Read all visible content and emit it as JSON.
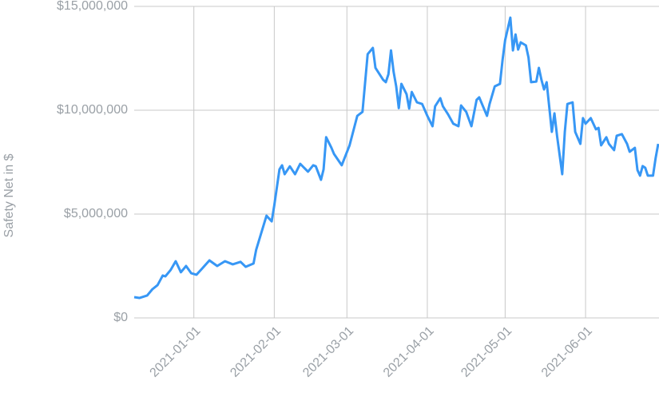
{
  "chart_data": {
    "type": "line",
    "y_label": "Safety Net in $",
    "color": "#3797f5",
    "grid": true,
    "x": [
      "2020-12-09",
      "2020-12-11",
      "2020-12-14",
      "2020-12-16",
      "2020-12-18",
      "2020-12-20",
      "2020-12-21",
      "2020-12-23",
      "2020-12-25",
      "2020-12-27",
      "2020-12-29",
      "2020-12-31",
      "2021-01-02",
      "2021-01-04",
      "2021-01-07",
      "2021-01-10",
      "2021-01-13",
      "2021-01-16",
      "2021-01-19",
      "2021-01-21",
      "2021-01-24",
      "2021-01-25",
      "2021-01-29",
      "2021-01-31",
      "2021-02-01",
      "2021-02-03",
      "2021-02-04",
      "2021-02-05",
      "2021-02-07",
      "2021-02-09",
      "2021-02-11",
      "2021-02-14",
      "2021-02-16",
      "2021-02-17",
      "2021-02-19",
      "2021-02-20",
      "2021-02-21",
      "2021-02-23",
      "2021-02-24",
      "2021-02-27",
      "2021-03-02",
      "2021-03-05",
      "2021-03-07",
      "2021-03-09",
      "2021-03-11",
      "2021-03-12",
      "2021-03-15",
      "2021-03-16",
      "2021-03-17",
      "2021-03-18",
      "2021-03-19",
      "2021-03-20",
      "2021-03-21",
      "2021-03-22",
      "2021-03-24",
      "2021-03-25",
      "2021-03-26",
      "2021-03-28",
      "2021-03-30",
      "2021-04-01",
      "2021-04-03",
      "2021-04-04",
      "2021-04-06",
      "2021-04-07",
      "2021-04-09",
      "2021-04-11",
      "2021-04-13",
      "2021-04-14",
      "2021-04-16",
      "2021-04-18",
      "2021-04-20",
      "2021-04-21",
      "2021-04-24",
      "2021-04-25",
      "2021-04-27",
      "2021-04-29",
      "2021-04-30",
      "2021-05-01",
      "2021-05-03",
      "2021-05-04",
      "2021-05-05",
      "2021-05-06",
      "2021-05-07",
      "2021-05-09",
      "2021-05-10",
      "2021-05-11",
      "2021-05-13",
      "2021-05-14",
      "2021-05-15",
      "2021-05-16",
      "2021-05-17",
      "2021-05-19",
      "2021-05-20",
      "2021-05-21",
      "2021-05-23",
      "2021-05-24",
      "2021-05-25",
      "2021-05-27",
      "2021-05-28",
      "2021-05-30",
      "2021-05-31",
      "2021-06-01",
      "2021-06-03",
      "2021-06-05",
      "2021-06-06",
      "2021-06-07",
      "2021-06-09",
      "2021-06-10",
      "2021-06-12",
      "2021-06-13",
      "2021-06-15",
      "2021-06-17",
      "2021-06-18",
      "2021-06-20",
      "2021-06-21",
      "2021-06-22",
      "2021-06-23",
      "2021-06-24",
      "2021-06-25",
      "2021-06-27",
      "2021-06-28",
      "2021-06-29"
    ],
    "values": [
      1000000,
      960000,
      1080000,
      1380000,
      1580000,
      2040000,
      2000000,
      2300000,
      2730000,
      2200000,
      2500000,
      2150000,
      2080000,
      2350000,
      2770000,
      2500000,
      2730000,
      2580000,
      2700000,
      2460000,
      2620000,
      3270000,
      4920000,
      4650000,
      5420000,
      7150000,
      7350000,
      6920000,
      7300000,
      6920000,
      7420000,
      7040000,
      7350000,
      7300000,
      6650000,
      7150000,
      8700000,
      8200000,
      7900000,
      7350000,
      8300000,
      9730000,
      9920000,
      12700000,
      13000000,
      12040000,
      11460000,
      11350000,
      11730000,
      12880000,
      11850000,
      11150000,
      10100000,
      11270000,
      10770000,
      10080000,
      10880000,
      10380000,
      10300000,
      9730000,
      9230000,
      10190000,
      10580000,
      10190000,
      9800000,
      9350000,
      9230000,
      10230000,
      9920000,
      9230000,
      10500000,
      10620000,
      9730000,
      10300000,
      11150000,
      11270000,
      12420000,
      13380000,
      14460000,
      12880000,
      13650000,
      12920000,
      13270000,
      13120000,
      12540000,
      11350000,
      11380000,
      12040000,
      11460000,
      11000000,
      11350000,
      8960000,
      9850000,
      8770000,
      6920000,
      8960000,
      10300000,
      10380000,
      8960000,
      8380000,
      9620000,
      9350000,
      9620000,
      9080000,
      9150000,
      8310000,
      8700000,
      8380000,
      8080000,
      8770000,
      8850000,
      8380000,
      8000000,
      8190000,
      7120000,
      6850000,
      7310000,
      7230000,
      6850000,
      6850000,
      7690000,
      8380000
    ],
    "xlim": [
      "2020-12-09",
      "2021-06-29"
    ],
    "xticks": [
      "2021-01-01",
      "2021-02-01",
      "2021-03-01",
      "2021-04-01",
      "2021-05-01",
      "2021-06-01"
    ],
    "ylim": [
      0,
      15000000
    ],
    "yticks": [
      {
        "value": 0,
        "label": "$0"
      },
      {
        "value": 5000000,
        "label": "$5,000,000"
      },
      {
        "value": 10000000,
        "label": "$10,000,000"
      },
      {
        "value": 15000000,
        "label": "$15,000,000"
      }
    ]
  }
}
